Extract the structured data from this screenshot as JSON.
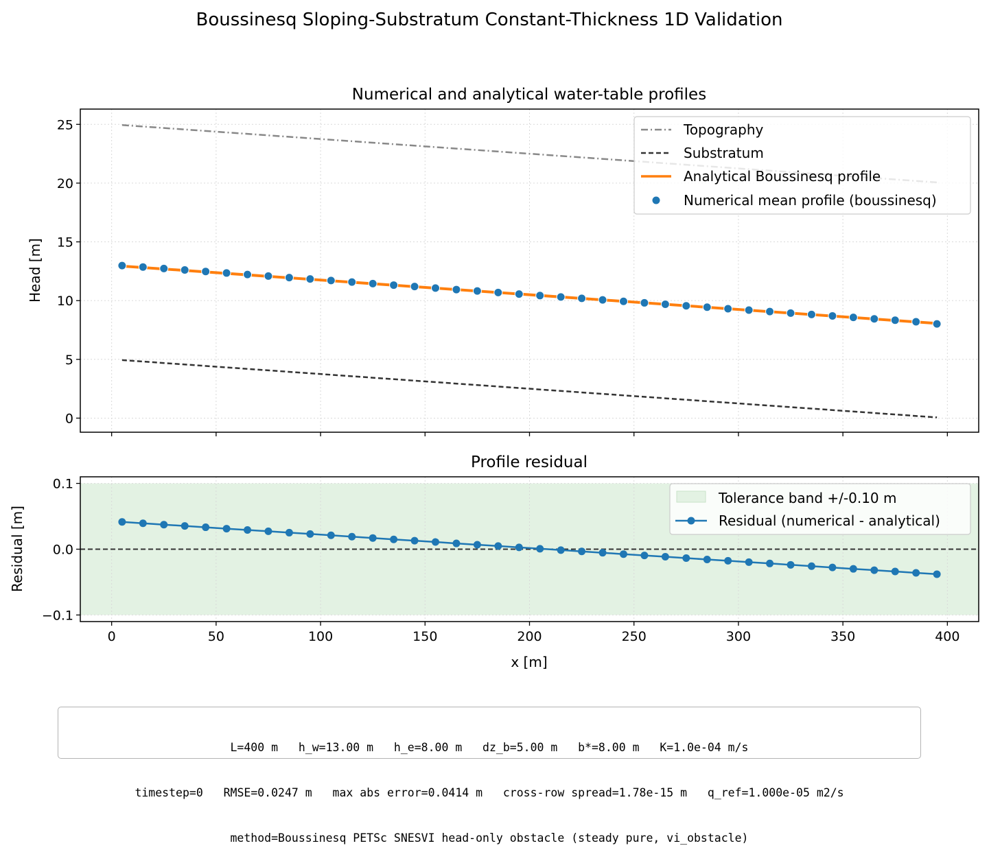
{
  "figure": {
    "title": "Boussinesq Sloping-Substratum Constant-Thickness 1D Validation"
  },
  "colors": {
    "topography": "#888888",
    "substratum": "#333333",
    "analytical": "#ff7f0e",
    "numerical": "#1f77b4",
    "tolerance_band": "#e3f2e3",
    "zero_line": "#333333"
  },
  "chart_data": [
    {
      "type": "line",
      "title": "Numerical and analytical water-table profiles",
      "xlabel": "",
      "ylabel": "Head [m]",
      "xlim": [
        -15,
        415
      ],
      "ylim": [
        -1.2,
        26.3
      ],
      "xticks": [
        0,
        50,
        100,
        150,
        200,
        250,
        300,
        350,
        400
      ],
      "yticks": [
        0,
        5,
        10,
        15,
        20,
        25
      ],
      "ytick_labels": [
        "0",
        "5",
        "10",
        "15",
        "20",
        "25"
      ],
      "grid": true,
      "legend_position": "top-right",
      "x": [
        5,
        15,
        25,
        35,
        45,
        55,
        65,
        75,
        85,
        95,
        105,
        115,
        125,
        135,
        145,
        155,
        165,
        175,
        185,
        195,
        205,
        215,
        225,
        235,
        245,
        255,
        265,
        275,
        285,
        295,
        305,
        315,
        325,
        335,
        345,
        355,
        365,
        375,
        385,
        395
      ],
      "series": [
        {
          "name": "Topography",
          "style": "dashdot",
          "x": [
            5,
            395
          ],
          "values": [
            24.94,
            20.06
          ]
        },
        {
          "name": "Substratum",
          "style": "dashed",
          "x": [
            5,
            395
          ],
          "values": [
            4.94,
            0.06
          ]
        },
        {
          "name": "Analytical Boussinesq profile",
          "style": "line",
          "x": [
            5,
            395
          ],
          "values": [
            12.94,
            8.06
          ]
        },
        {
          "name": "Numerical mean profile (boussinesq)",
          "style": "scatter",
          "values": [
            12.98,
            12.86,
            12.73,
            12.61,
            12.48,
            12.35,
            12.22,
            12.09,
            11.96,
            11.84,
            11.71,
            11.58,
            11.45,
            11.32,
            11.2,
            11.07,
            10.94,
            10.82,
            10.69,
            10.56,
            10.43,
            10.31,
            10.19,
            10.06,
            9.94,
            9.81,
            9.69,
            9.56,
            9.44,
            9.31,
            9.19,
            9.07,
            8.94,
            8.82,
            8.7,
            8.57,
            8.45,
            8.33,
            8.2,
            8.02
          ]
        }
      ]
    },
    {
      "type": "line",
      "title": "Profile residual",
      "xlabel": "x [m]",
      "ylabel": "Residual [m]",
      "xlim": [
        -15,
        415
      ],
      "ylim": [
        -0.11,
        0.11
      ],
      "xticks": [
        0,
        50,
        100,
        150,
        200,
        250,
        300,
        350,
        400
      ],
      "xtick_labels": [
        "0",
        "50",
        "100",
        "150",
        "200",
        "250",
        "300",
        "350",
        "400"
      ],
      "yticks": [
        -0.1,
        0.0,
        0.1
      ],
      "ytick_labels": [
        "−0.1",
        "0.0",
        "0.1"
      ],
      "grid": true,
      "legend_position": "top-right",
      "tolerance": 0.1,
      "band_label": "Tolerance band +/-0.10 m",
      "x": [
        5,
        15,
        25,
        35,
        45,
        55,
        65,
        75,
        85,
        95,
        105,
        115,
        125,
        135,
        145,
        155,
        165,
        175,
        185,
        195,
        205,
        215,
        225,
        235,
        245,
        255,
        265,
        275,
        285,
        295,
        305,
        315,
        325,
        335,
        345,
        355,
        365,
        375,
        385,
        395
      ],
      "series": [
        {
          "name": "Residual (numerical - analytical)",
          "style": "line-marker",
          "values": [
            0.0414,
            0.0394,
            0.0373,
            0.0353,
            0.0333,
            0.0312,
            0.0292,
            0.0272,
            0.0251,
            0.0231,
            0.0211,
            0.019,
            0.017,
            0.0149,
            0.0129,
            0.0109,
            0.0088,
            0.0068,
            0.0048,
            0.0027,
            0.0007,
            -0.0014,
            -0.0034,
            -0.0054,
            -0.0075,
            -0.0095,
            -0.0115,
            -0.0136,
            -0.0156,
            -0.0176,
            -0.0197,
            -0.0217,
            -0.0238,
            -0.0258,
            -0.0278,
            -0.0299,
            -0.0319,
            -0.0339,
            -0.036,
            -0.038
          ]
        }
      ]
    }
  ],
  "info_box": {
    "line1": "L=400 m   h_w=13.00 m   h_e=8.00 m   dz_b=5.00 m   b*=8.00 m   K=1.0e-04 m/s",
    "line2": "timestep=0   RMSE=0.0247 m   max abs error=0.0414 m   cross-row spread=1.78e-15 m   q_ref=1.000e-05 m2/s",
    "line3": "method=Boussinesq PETSc SNESVI head-only obstacle (steady pure, vi_obstacle)"
  }
}
